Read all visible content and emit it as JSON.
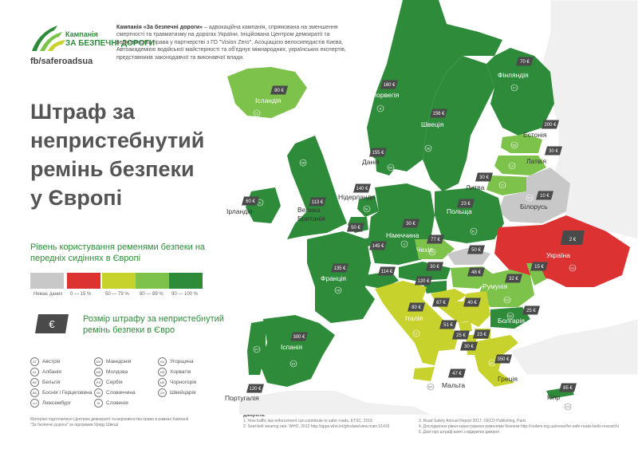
{
  "logo": {
    "word1": "Кампанія",
    "word2": "ЗА БЕЗПЕЧНІ ДОРОГИ",
    "fb": "fb/saferoadsua"
  },
  "intro": {
    "bold": "Кампанія «За безпечні дороги»",
    "text": " – адвокаційна кампанія, спрямована на зменшення смертності та травматизму на дорогах України. Ініційована Центром демократії та верховенства права у партнерстві з ГО \"Vision Zero\", Асоціацією велосипедистів Києва, Автоакадемією водійської майстерності та об'єднує міжнародних, українських експертів, представників законодавчої та виконавчої влади."
  },
  "title": [
    "Штраф за",
    "непристебнутий",
    "ремінь безпеки",
    "у Європі"
  ],
  "legend": {
    "title": "Рівень користування ременями безпеки на передніх сидіннях в Європі",
    "items": [
      {
        "label": "Немає даних",
        "color": "#c8c8c8"
      },
      {
        "label": "0 — 15 %",
        "color": "#dc3232"
      },
      {
        "label": "50 — 79 %",
        "color": "#c8d22d"
      },
      {
        "label": "80 — 89 %",
        "color": "#7dc24b"
      },
      {
        "label": "90 — 100 %",
        "color": "#2e8b3a"
      }
    ]
  },
  "fine_legend": {
    "symbol": "€",
    "text": "Розмір штрафу за непристебнутий ремінь безпеки в Євро"
  },
  "codes": [
    [
      {
        "code": "AT",
        "name": "Австрія"
      },
      {
        "code": "AL",
        "name": "Албанія"
      },
      {
        "code": "BE",
        "name": "Бельгія"
      },
      {
        "code": "BA",
        "name": "Боснія і Герцеговина"
      },
      {
        "code": "LU",
        "name": "Люксембург"
      }
    ],
    [
      {
        "code": "MK",
        "name": "Македонія"
      },
      {
        "code": "MD",
        "name": "Молдова"
      },
      {
        "code": "RS",
        "name": "Сербія"
      },
      {
        "code": "SK",
        "name": "Словаччина"
      },
      {
        "code": "SI",
        "name": "Словенія"
      }
    ],
    [
      {
        "code": "HU",
        "name": "Угорщина"
      },
      {
        "code": "HR",
        "name": "Хорватія"
      },
      {
        "code": "ME",
        "name": "Чорногорія"
      },
      {
        "code": "CH",
        "name": "Швейцарія"
      }
    ]
  ],
  "footnote": "Матеріал підготовлено Центром демократії та верховенства права в рамках Кампанії \"За безпечні дороги\" за підтримки Уряду Швеції",
  "sources": {
    "title": "Джерела:",
    "items": [
      "1. How traffic law enforcement can contribute to safer roads, ETSC, 2016",
      "2. Seat-belt wearing rate. WHO, 2013 http://apps.who.int/ghodata/view.main.51416",
      "3. Road Safety Annual Report 2017, OECD Publishing, Paris",
      "4. Дослідження рівня користування ременями безпеки http://cedem.org.ua/news/for-safe-roads-belts-research/",
      "5. Дані про штраф взяті з відкритих джерел"
    ]
  },
  "colors": {
    "none": "#c8c8c8",
    "low": "#dc3232",
    "mid": "#c8d22d",
    "high": "#7dc24b",
    "top": "#2e8b3a",
    "sea": "#ffffff",
    "badge": "#4a4a4a"
  },
  "countries": {
    "iceland": {
      "name": "Ісландія",
      "fine": "80 €",
      "code": "IS"
    },
    "norway": {
      "name": "Норвегія",
      "fine": "160 €",
      "code": "N"
    },
    "sweden": {
      "name": "Швеція",
      "fine": "156 €",
      "code": "SE"
    },
    "finland": {
      "name": "Фінляндія",
      "fine": "70 €",
      "code": "FI"
    },
    "estonia": {
      "name": "Естонія",
      "fine": "200 €",
      "code": "EE"
    },
    "latvia": {
      "name": "Латвія",
      "fine": "30 €",
      "code": "LV"
    },
    "lithuania": {
      "name": "Литва",
      "fine": "30 €",
      "code": "LT"
    },
    "belarus": {
      "name": "Білорусь",
      "fine": "10 €",
      "code": "BY"
    },
    "denmark": {
      "name": "Данія",
      "fine": "155 €",
      "code": "DK"
    },
    "uk": {
      "name": "Велика Британія",
      "fine": "113 €",
      "code": "GB"
    },
    "ireland": {
      "name": "Ірландія",
      "fine": "60 €",
      "code": "IE"
    },
    "netherlands": {
      "name": "Нідерланди",
      "fine": "140 €",
      "code": "NL"
    },
    "germany": {
      "name": "Німеччина",
      "fine": "30 €",
      "code": "D"
    },
    "poland": {
      "name": "Польща",
      "fine": "23 €",
      "code": "PL"
    },
    "belgium": {
      "fine": "50 €"
    },
    "luxembourg": {
      "fine": "145 €"
    },
    "czech": {
      "name": "Чехія",
      "fine": "77 €",
      "code": "CZ"
    },
    "slovakia": {
      "fine": "50 €"
    },
    "austria": {
      "fine": "30 €"
    },
    "hungary": {
      "fine": "48 €"
    },
    "switzerland": {
      "fine": "114 €"
    },
    "slovenia": {
      "fine": "120 €"
    },
    "ukraine": {
      "name": "Україна",
      "fine": "2 €",
      "code": "UA"
    },
    "moldova": {
      "fine": "15 €"
    },
    "romania": {
      "name": "Румунія",
      "fine": "32 €",
      "code": "RO"
    },
    "bulgaria": {
      "name": "Болгарія",
      "fine": "25 €",
      "code": "BG"
    },
    "croatia": {
      "fine": "67 €"
    },
    "serbia": {
      "fine": "40 €"
    },
    "bosnia": {
      "fine": "51 €"
    },
    "montenegro": {
      "fine": "25 €"
    },
    "macedonia": {
      "fine": "23 €"
    },
    "albania": {
      "fine": "30 €"
    },
    "france": {
      "name": "Франція",
      "fine": "135 €",
      "code": "FR"
    },
    "italy": {
      "name": "Італія",
      "fine": "80 €",
      "code": "IT"
    },
    "spain": {
      "name": "Іспанія",
      "fine": "300 €",
      "code": "ES"
    },
    "portugal": {
      "name": "Португалія",
      "fine": "120 €",
      "code": "PT"
    },
    "greece": {
      "name": "Греція",
      "fine": "350 €",
      "code": "GR"
    },
    "malta": {
      "name": "Мальта",
      "fine": "47 €",
      "code": "MT"
    },
    "cyprus": {
      "name": "Кіпр",
      "fine": "85 €",
      "code": "CY"
    }
  }
}
